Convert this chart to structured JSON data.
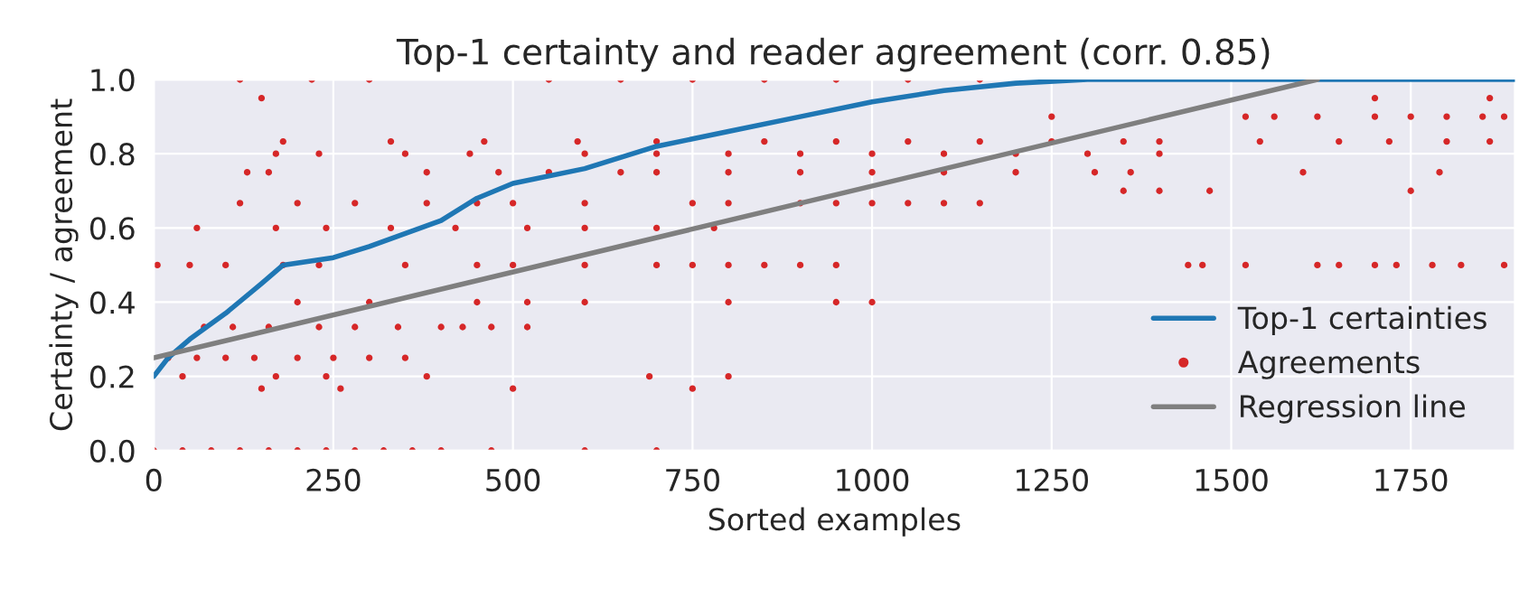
{
  "chart_data": {
    "type": "line",
    "title": "Top-1 certainty and reader agreement (corr. 0.85)",
    "xlabel": "Sorted examples",
    "ylabel": "Certainty / agreement",
    "xlim": [
      0,
      1895
    ],
    "ylim": [
      0,
      1.0
    ],
    "xticks": [
      0,
      250,
      500,
      750,
      1000,
      1250,
      1500,
      1750
    ],
    "yticks": [
      {
        "value": 0,
        "label": "0.0"
      },
      {
        "value": 0.2,
        "label": "0.2"
      },
      {
        "value": 0.4,
        "label": "0.4"
      },
      {
        "value": 0.6,
        "label": "0.6"
      },
      {
        "value": 0.8,
        "label": "0.8"
      },
      {
        "value": 1.0,
        "label": "1.0"
      }
    ],
    "grid": true,
    "legend": "bottom right",
    "series": [
      {
        "name": "Top-1 certainties",
        "color": "#1f77b4",
        "marker": "none",
        "x": [
          0,
          20,
          50,
          100,
          150,
          180,
          250,
          300,
          400,
          450,
          500,
          600,
          700,
          800,
          900,
          1000,
          1100,
          1200,
          1300,
          1895
        ],
        "values": [
          0.2,
          0.25,
          0.3,
          0.37,
          0.45,
          0.5,
          0.52,
          0.55,
          0.62,
          0.68,
          0.72,
          0.76,
          0.82,
          0.86,
          0.9,
          0.94,
          0.97,
          0.99,
          1.0,
          1.0
        ]
      },
      {
        "name": "Agreements",
        "type": "scatter",
        "color": "#d62728",
        "marker": "circle",
        "x": [
          0,
          40,
          80,
          120,
          160,
          200,
          240,
          280,
          320,
          360,
          400,
          470,
          600,
          700,
          120,
          220,
          300,
          550,
          650,
          750,
          850,
          950,
          1050,
          1150,
          20,
          60,
          100,
          140,
          200,
          250,
          300,
          350,
          70,
          110,
          160,
          230,
          280,
          340,
          400,
          430,
          470,
          520,
          5,
          50,
          100,
          180,
          230,
          350,
          450,
          500,
          600,
          700,
          750,
          800,
          850,
          900,
          950,
          60,
          170,
          240,
          330,
          420,
          520,
          600,
          700,
          780,
          120,
          200,
          280,
          380,
          450,
          500,
          600,
          750,
          800,
          900,
          950,
          1000,
          1050,
          1100,
          1150,
          130,
          160,
          380,
          480,
          550,
          650,
          700,
          800,
          900,
          1000,
          1100,
          1200,
          170,
          230,
          350,
          440,
          600,
          700,
          800,
          900,
          1000,
          1100,
          1200,
          1300,
          1400,
          180,
          330,
          460,
          590,
          700,
          850,
          950,
          1050,
          1150,
          1250,
          1350,
          1400,
          1250,
          1520,
          1560,
          1620,
          1700,
          1750,
          1800,
          1850,
          1880,
          1540,
          1650,
          1720,
          1800,
          1860,
          1440,
          1460,
          1520,
          1620,
          1650,
          1700,
          1730,
          1780,
          1820,
          1880,
          40,
          170,
          240,
          380,
          690,
          800,
          150,
          260,
          500,
          750,
          200,
          300,
          450,
          520,
          600,
          800,
          950,
          1000,
          150,
          1700,
          1860,
          1350,
          1400,
          1470,
          1750,
          1310,
          1360,
          1600,
          1790
        ],
        "values": [
          0,
          0,
          0,
          0,
          0,
          0,
          0,
          0,
          0,
          0,
          0,
          0,
          0,
          0,
          1.0,
          1.0,
          1.0,
          1.0,
          1.0,
          1.0,
          1.0,
          1.0,
          1.0,
          1.0,
          0.25,
          0.25,
          0.25,
          0.25,
          0.25,
          0.25,
          0.25,
          0.25,
          0.333,
          0.333,
          0.333,
          0.333,
          0.333,
          0.333,
          0.333,
          0.333,
          0.333,
          0.333,
          0.5,
          0.5,
          0.5,
          0.5,
          0.5,
          0.5,
          0.5,
          0.5,
          0.5,
          0.5,
          0.5,
          0.5,
          0.5,
          0.5,
          0.5,
          0.6,
          0.6,
          0.6,
          0.6,
          0.6,
          0.6,
          0.6,
          0.6,
          0.6,
          0.667,
          0.667,
          0.667,
          0.667,
          0.667,
          0.667,
          0.667,
          0.667,
          0.667,
          0.667,
          0.667,
          0.667,
          0.667,
          0.667,
          0.667,
          0.75,
          0.75,
          0.75,
          0.75,
          0.75,
          0.75,
          0.75,
          0.75,
          0.75,
          0.75,
          0.75,
          0.75,
          0.8,
          0.8,
          0.8,
          0.8,
          0.8,
          0.8,
          0.8,
          0.8,
          0.8,
          0.8,
          0.8,
          0.8,
          0.8,
          0.833,
          0.833,
          0.833,
          0.833,
          0.833,
          0.833,
          0.833,
          0.833,
          0.833,
          0.833,
          0.833,
          0.833,
          0.9,
          0.9,
          0.9,
          0.9,
          0.9,
          0.9,
          0.9,
          0.9,
          0.9,
          0.833,
          0.833,
          0.833,
          0.833,
          0.833,
          0.5,
          0.5,
          0.5,
          0.5,
          0.5,
          0.5,
          0.5,
          0.5,
          0.5,
          0.5,
          0.2,
          0.2,
          0.2,
          0.2,
          0.2,
          0.2,
          0.167,
          0.167,
          0.167,
          0.167,
          0.4,
          0.4,
          0.4,
          0.4,
          0.4,
          0.4,
          0.4,
          0.4,
          0.95,
          0.95,
          0.95,
          0.7,
          0.7,
          0.7,
          0.7,
          0.75,
          0.75,
          0.75,
          0.75
        ]
      },
      {
        "name": "Regression line",
        "color": "#7f7f7f",
        "marker": "none",
        "x": [
          0,
          1620
        ],
        "values": [
          0.25,
          1.0
        ]
      }
    ]
  }
}
